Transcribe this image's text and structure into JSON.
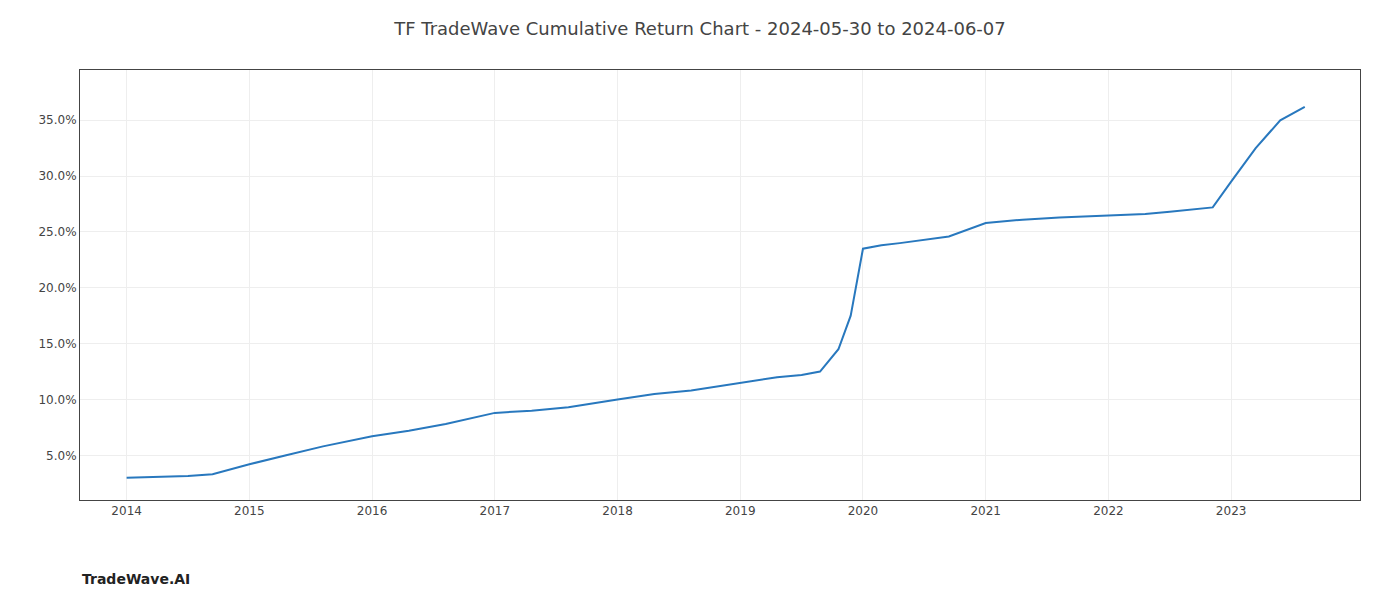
{
  "chart_data": {
    "type": "line",
    "title": "TF TradeWave Cumulative Return Chart - 2024-05-30 to 2024-06-07",
    "annotations": [
      "TradeWave.AI"
    ],
    "x": [
      2014.0,
      2014.15,
      2014.3,
      2014.5,
      2014.7,
      2015.0,
      2015.3,
      2015.6,
      2016.0,
      2016.3,
      2016.6,
      2017.0,
      2017.3,
      2017.6,
      2018.0,
      2018.3,
      2018.6,
      2019.0,
      2019.15,
      2019.3,
      2019.5,
      2019.65,
      2019.8,
      2019.9,
      2020.0,
      2020.15,
      2020.3,
      2020.5,
      2020.7,
      2021.0,
      2021.3,
      2021.6,
      2022.0,
      2022.3,
      2022.5,
      2022.7,
      2022.85,
      2023.0,
      2023.2,
      2023.4,
      2023.6
    ],
    "values": [
      3.0,
      3.05,
      3.1,
      3.15,
      3.3,
      4.2,
      5.0,
      5.8,
      6.7,
      7.2,
      7.8,
      8.8,
      9.0,
      9.3,
      10.0,
      10.5,
      10.8,
      11.5,
      11.8,
      12.0,
      12.2,
      12.5,
      14.5,
      17.5,
      23.5,
      23.8,
      24.0,
      24.3,
      24.6,
      25.8,
      26.1,
      26.3,
      26.5,
      26.6,
      26.8,
      27.0,
      27.2,
      29.5,
      32.5,
      35.0,
      36.2
    ],
    "color": "#2878be",
    "xlim": [
      2013.62,
      2024.05
    ],
    "xticks": [
      2014,
      2015,
      2016,
      2017,
      2018,
      2019,
      2020,
      2021,
      2022,
      2023
    ],
    "ylim": [
      1.0,
      39.5
    ],
    "yticks": [
      {
        "value": 5.0,
        "label": "5.0%"
      },
      {
        "value": 10.0,
        "label": "10.0%"
      },
      {
        "value": 15.0,
        "label": "15.0%"
      },
      {
        "value": 20.0,
        "label": "20.0%"
      },
      {
        "value": 25.0,
        "label": "25.0%"
      },
      {
        "value": 30.0,
        "label": "30.0%"
      },
      {
        "value": 35.0,
        "label": "35.0%"
      }
    ],
    "grid": true
  }
}
